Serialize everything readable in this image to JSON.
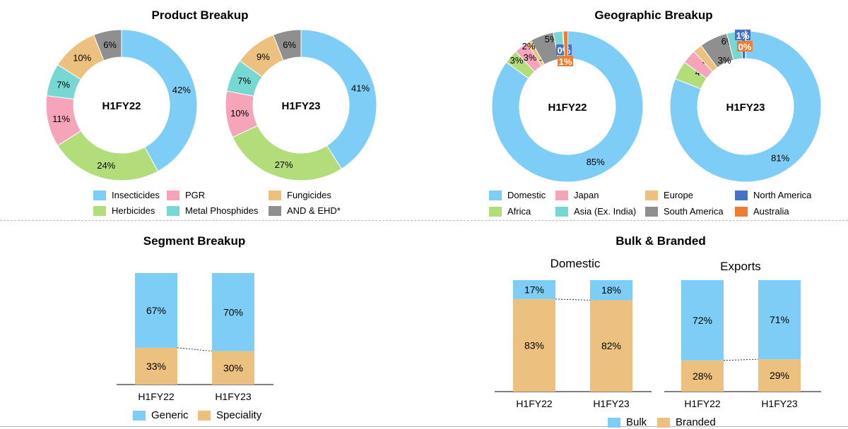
{
  "chart_data": [
    {
      "type": "pie",
      "title": "Product Breakup",
      "categories": [
        "Insecticides",
        "Herbicides",
        "PGR",
        "Metal Phosphides",
        "Fungicides",
        "AND & EHD*"
      ],
      "colors": [
        "#7ecdf6",
        "#b2dd7a",
        "#f5a4ba",
        "#77d7d2",
        "#ecc17f",
        "#8f8f8f"
      ],
      "series": [
        {
          "name": "H1FY22",
          "values": [
            42,
            24,
            11,
            7,
            10,
            6
          ]
        },
        {
          "name": "H1FY23",
          "values": [
            41,
            27,
            10,
            7,
            9,
            6
          ]
        }
      ],
      "legend": [
        {
          "label": "Insecticides",
          "color": "#7ecdf6"
        },
        {
          "label": "PGR",
          "color": "#f5a4ba"
        },
        {
          "label": "Fungicides",
          "color": "#ecc17f"
        },
        {
          "label": "Herbicides",
          "color": "#b2dd7a"
        },
        {
          "label": "Metal Phosphides",
          "color": "#77d7d2"
        },
        {
          "label": "AND & EHD*",
          "color": "#8f8f8f"
        }
      ]
    },
    {
      "type": "pie",
      "title": "Geographic Breakup",
      "categories": [
        "Domestic",
        "Africa",
        "Japan",
        "Europe",
        "South America",
        "Asia (Ex. India)",
        "North America",
        "Australia"
      ],
      "colors": [
        "#7ecdf6",
        "#b2dd7a",
        "#f5a4ba",
        "#ecc17f",
        "#8f8f8f",
        "#77d7d2",
        "#4472c4",
        "#ed7d31"
      ],
      "series": [
        {
          "name": "H1FY22",
          "values": [
            85,
            3,
            3,
            1,
            5,
            2,
            0,
            1
          ]
        },
        {
          "name": "H1FY23",
          "values": [
            81,
            4,
            3,
            2,
            6,
            3,
            1,
            0
          ]
        }
      ],
      "legend": [
        {
          "label": "Domestic",
          "color": "#7ecdf6"
        },
        {
          "label": "Japan",
          "color": "#f5a4ba"
        },
        {
          "label": "Europe",
          "color": "#ecc17f"
        },
        {
          "label": "North America",
          "color": "#4472c4"
        },
        {
          "label": "Africa",
          "color": "#b2dd7a"
        },
        {
          "label": "Asia (Ex. India)",
          "color": "#77d7d2"
        },
        {
          "label": "South America",
          "color": "#8f8f8f"
        },
        {
          "label": "Australia",
          "color": "#ed7d31"
        }
      ]
    },
    {
      "type": "bar",
      "title": "Segment Breakup",
      "stacked": true,
      "categories": [
        "H1FY22",
        "H1FY23"
      ],
      "series": [
        {
          "name": "Speciality",
          "values": [
            33,
            30
          ],
          "color": "#ecc17f"
        },
        {
          "name": "Generic",
          "values": [
            67,
            70
          ],
          "color": "#7ecdf6"
        }
      ]
    },
    {
      "type": "bar",
      "title": "Bulk & Branded",
      "subtitle": "Domestic",
      "stacked": true,
      "categories": [
        "H1FY22",
        "H1FY23"
      ],
      "series": [
        {
          "name": "Branded",
          "values": [
            83,
            82
          ],
          "color": "#ecc17f"
        },
        {
          "name": "Bulk",
          "values": [
            17,
            18
          ],
          "color": "#7ecdf6"
        }
      ]
    },
    {
      "type": "bar",
      "subtitle": "Exports",
      "stacked": true,
      "categories": [
        "H1FY22",
        "H1FY23"
      ],
      "series": [
        {
          "name": "Branded",
          "values": [
            28,
            29
          ],
          "color": "#ecc17f"
        },
        {
          "name": "Bulk",
          "values": [
            72,
            71
          ],
          "color": "#7ecdf6"
        }
      ]
    }
  ],
  "legends": {
    "segment": [
      {
        "label": "Generic",
        "color": "#7ecdf6"
      },
      {
        "label": "Speciality",
        "color": "#ecc17f"
      }
    ],
    "bulk_branded": [
      {
        "label": "Bulk",
        "color": "#7ecdf6"
      },
      {
        "label": "Branded",
        "color": "#ecc17f"
      }
    ]
  }
}
